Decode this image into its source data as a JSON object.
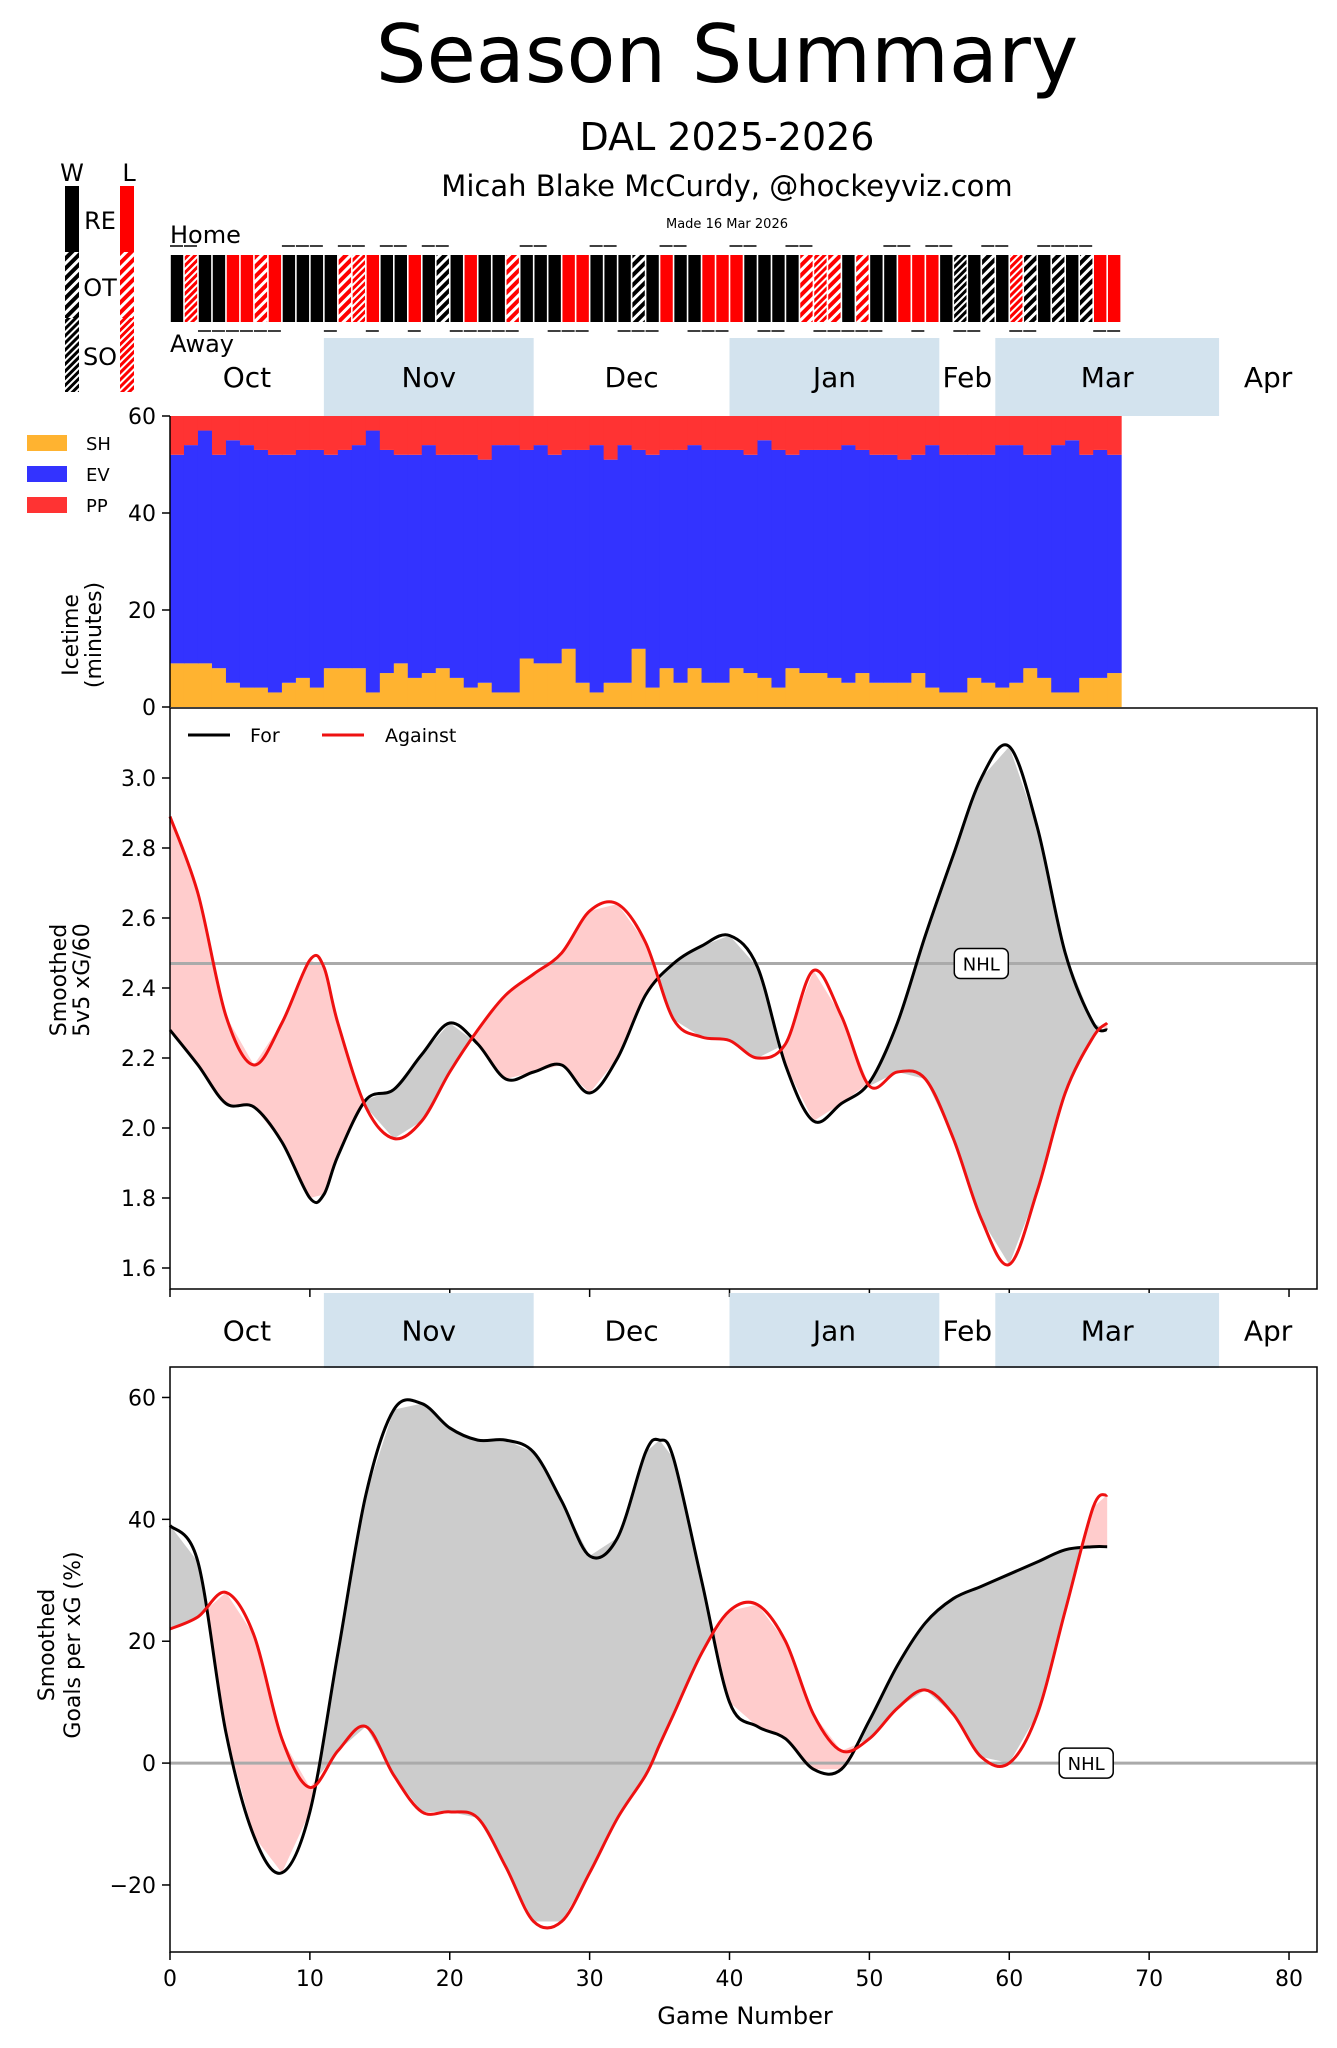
{
  "header": {
    "title": "Season Summary",
    "subtitle": "DAL 2025-2026",
    "author": "Micah Blake McCurdy, @hockeyviz.com",
    "made": "Made 16 Mar 2026"
  },
  "legend_bar": {
    "w": "W",
    "l": "L",
    "re": "RE",
    "ot": "OT",
    "so": "SO",
    "home": "Home",
    "away": "Away"
  },
  "colors": {
    "win": "#000000",
    "loss": "#ff0000",
    "sh": "#ffb330",
    "ev": "#3333ff",
    "pp": "#ff3333",
    "band": "#d3e3ee",
    "for_fill": "#cccccc",
    "against_fill": "#ffcccc",
    "nhl_line": "#aaaaaa"
  },
  "months": [
    "Oct",
    "Nov",
    "Dec",
    "Jan",
    "Feb",
    "Mar",
    "Apr"
  ],
  "games": {
    "result": [
      "W",
      "L",
      "W",
      "W",
      "L",
      "L",
      "L",
      "L",
      "W",
      "W",
      "W",
      "W",
      "L",
      "L",
      "L",
      "W",
      "W",
      "L",
      "W",
      "W",
      "W",
      "L",
      "W",
      "W",
      "L",
      "W",
      "W",
      "W",
      "L",
      "L",
      "W",
      "W",
      "W",
      "W",
      "W",
      "L",
      "W",
      "W",
      "L",
      "L",
      "L",
      "W",
      "W",
      "W",
      "W",
      "L",
      "L",
      "L",
      "W",
      "L",
      "W",
      "W",
      "L",
      "L",
      "L",
      "W",
      "W",
      "W",
      "W",
      "W",
      "L",
      "W",
      "W",
      "W",
      "W",
      "W",
      "L",
      "L"
    ],
    "type": [
      "RE",
      "SO",
      "RE",
      "RE",
      "RE",
      "RE",
      "OT",
      "RE",
      "RE",
      "RE",
      "RE",
      "RE",
      "OT",
      "SO",
      "RE",
      "RE",
      "RE",
      "RE",
      "RE",
      "OT",
      "RE",
      "RE",
      "RE",
      "RE",
      "OT",
      "RE",
      "RE",
      "RE",
      "RE",
      "RE",
      "RE",
      "RE",
      "RE",
      "OT",
      "RE",
      "RE",
      "RE",
      "RE",
      "RE",
      "RE",
      "RE",
      "RE",
      "RE",
      "RE",
      "RE",
      "OT",
      "SO",
      "OT",
      "RE",
      "OT",
      "RE",
      "RE",
      "RE",
      "RE",
      "RE",
      "RE",
      "SO",
      "RE",
      "OT",
      "RE",
      "SO",
      "OT",
      "RE",
      "OT",
      "RE",
      "OT",
      "RE",
      "RE"
    ],
    "home": [
      1,
      1,
      0,
      0,
      0,
      0,
      0,
      0,
      1,
      1,
      1,
      0,
      1,
      1,
      0,
      1,
      1,
      0,
      1,
      1,
      0,
      0,
      0,
      0,
      0,
      1,
      1,
      0,
      0,
      0,
      1,
      1,
      0,
      0,
      0,
      1,
      1,
      0,
      0,
      0,
      1,
      1,
      0,
      0,
      1,
      1,
      0,
      0,
      0,
      0,
      0,
      1,
      1,
      0,
      1,
      1,
      0,
      0,
      1,
      1,
      0,
      0,
      1,
      1,
      1,
      1,
      0,
      0
    ]
  },
  "chart_data": [
    {
      "type": "bar",
      "name": "icetime",
      "ylabel": "Icetime (minutes)",
      "ylabel_lines": [
        "Icetime",
        "(minutes)"
      ],
      "ylim": [
        0,
        60
      ],
      "yticks": [
        "0",
        "20",
        "40",
        "60"
      ],
      "legend": [
        "SH",
        "EV",
        "PP"
      ],
      "series": [
        {
          "name": "SH",
          "values": [
            9,
            9,
            9,
            8,
            5,
            4,
            4,
            3,
            5,
            6,
            4,
            8,
            8,
            8,
            3,
            7,
            9,
            6,
            7,
            8,
            6,
            4,
            5,
            3,
            3,
            10,
            9,
            9,
            12,
            5,
            3,
            5,
            5,
            12,
            4,
            8,
            5,
            8,
            5,
            5,
            8,
            7,
            6,
            4,
            8,
            7,
            7,
            6,
            5,
            7,
            5,
            5,
            5,
            7,
            4,
            3,
            3,
            6,
            5,
            4,
            5,
            8,
            6,
            3,
            3,
            6,
            6,
            7
          ]
        },
        {
          "name": "EV",
          "values": [
            43,
            45,
            48,
            44,
            50,
            50,
            49,
            49,
            47,
            47,
            49,
            44,
            45,
            46,
            54,
            46,
            43,
            46,
            47,
            44,
            46,
            48,
            46,
            51,
            51,
            43,
            45,
            43,
            41,
            48,
            51,
            46,
            49,
            41,
            48,
            45,
            48,
            46,
            48,
            48,
            45,
            45,
            49,
            49,
            44,
            46,
            46,
            47,
            49,
            46,
            47,
            47,
            46,
            45,
            50,
            49,
            49,
            46,
            47,
            50,
            49,
            44,
            46,
            51,
            52,
            46,
            47,
            45
          ]
        },
        {
          "name": "PP",
          "values": [
            8,
            6,
            3,
            8,
            5,
            6,
            7,
            8,
            8,
            7,
            7,
            8,
            7,
            6,
            3,
            7,
            8,
            8,
            6,
            8,
            8,
            8,
            9,
            6,
            6,
            7,
            6,
            8,
            7,
            7,
            6,
            9,
            6,
            7,
            8,
            7,
            7,
            6,
            7,
            7,
            7,
            8,
            5,
            7,
            8,
            7,
            7,
            7,
            6,
            7,
            8,
            8,
            9,
            8,
            6,
            8,
            8,
            8,
            8,
            6,
            6,
            8,
            8,
            6,
            5,
            8,
            7,
            8
          ]
        }
      ]
    },
    {
      "type": "area",
      "name": "xg60",
      "ylabel": "Smoothed 5v5 xG/60",
      "ylabel_lines": [
        "Smoothed",
        "5v5 xG/60"
      ],
      "ylim": [
        1.54,
        3.2
      ],
      "yticks": [
        "1.6",
        "1.8",
        "2.0",
        "2.2",
        "2.4",
        "2.6",
        "2.8",
        "3.0"
      ],
      "xlim": [
        0,
        82
      ],
      "nhl_average": 2.47,
      "nhl_label": "NHL",
      "legend": [
        "For",
        "Against"
      ],
      "series": [
        {
          "name": "For",
          "x": [
            0,
            2,
            4,
            6,
            8,
            10,
            11,
            12,
            14,
            16,
            18,
            20,
            22,
            24,
            26,
            28,
            30,
            32,
            34,
            36,
            38,
            40,
            42,
            44,
            46,
            48,
            50,
            52,
            54,
            56,
            58,
            60,
            62,
            64,
            66,
            67
          ],
          "values": [
            2.28,
            2.18,
            2.07,
            2.06,
            1.96,
            1.8,
            1.81,
            1.92,
            2.08,
            2.11,
            2.21,
            2.3,
            2.24,
            2.14,
            2.16,
            2.18,
            2.1,
            2.2,
            2.38,
            2.47,
            2.52,
            2.55,
            2.46,
            2.18,
            2.02,
            2.07,
            2.13,
            2.3,
            2.55,
            2.78,
            3.0,
            3.09,
            2.86,
            2.5,
            2.3,
            2.28
          ]
        },
        {
          "name": "Against",
          "x": [
            0,
            2,
            4,
            6,
            8,
            10,
            11,
            12,
            14,
            16,
            18,
            20,
            22,
            24,
            26,
            28,
            30,
            32,
            34,
            36,
            38,
            40,
            42,
            44,
            46,
            48,
            50,
            52,
            54,
            56,
            58,
            60,
            62,
            64,
            66,
            67
          ],
          "values": [
            2.89,
            2.67,
            2.32,
            2.18,
            2.3,
            2.48,
            2.46,
            2.3,
            2.06,
            1.97,
            2.02,
            2.16,
            2.28,
            2.38,
            2.44,
            2.5,
            2.62,
            2.64,
            2.53,
            2.31,
            2.26,
            2.25,
            2.2,
            2.24,
            2.45,
            2.32,
            2.12,
            2.16,
            2.14,
            1.97,
            1.74,
            1.61,
            1.82,
            2.1,
            2.26,
            2.3
          ]
        }
      ]
    },
    {
      "type": "area",
      "name": "goals_per_xg",
      "ylabel": "Smoothed Goals per xG (%)",
      "ylabel_lines": [
        "Smoothed",
        "Goals per xG (%)"
      ],
      "ylim": [
        -31,
        65
      ],
      "yticks": [
        "−20",
        "0",
        "20",
        "40",
        "60"
      ],
      "xlim": [
        0,
        82
      ],
      "xticks": [
        "0",
        "10",
        "20",
        "30",
        "40",
        "50",
        "60",
        "70",
        "80"
      ],
      "xlabel": "Game Number",
      "nhl_average": 0,
      "nhl_label": "NHL",
      "series": [
        {
          "name": "For",
          "x": [
            0,
            2,
            4,
            6,
            8,
            10,
            12,
            14,
            16,
            18,
            20,
            22,
            24,
            26,
            28,
            30,
            32,
            34,
            35,
            36,
            38,
            40,
            42,
            44,
            46,
            48,
            50,
            52,
            54,
            56,
            58,
            60,
            62,
            64,
            66,
            67
          ],
          "values": [
            39,
            33,
            5,
            -12,
            -18,
            -8,
            18,
            44,
            58,
            59,
            55,
            53,
            53,
            51,
            43,
            34,
            37,
            51,
            53,
            50,
            30,
            10,
            6,
            4,
            -1,
            -1,
            7,
            16,
            23,
            27,
            29,
            31,
            33,
            35,
            35.5,
            35.5
          ]
        },
        {
          "name": "Against",
          "x": [
            0,
            2,
            4,
            6,
            8,
            10,
            12,
            14,
            16,
            18,
            20,
            22,
            24,
            26,
            28,
            30,
            32,
            34,
            35,
            36,
            38,
            40,
            42,
            44,
            46,
            48,
            50,
            52,
            54,
            56,
            58,
            60,
            62,
            64,
            66,
            67
          ],
          "values": [
            22,
            24,
            28,
            21,
            4,
            -4,
            2,
            6,
            -2,
            -8,
            -8,
            -9,
            -17,
            -26,
            -26,
            -18,
            -9,
            -2,
            3,
            8,
            18,
            25,
            26,
            20,
            8,
            2,
            4,
            9,
            12,
            8,
            1,
            0,
            8,
            25,
            42,
            44
          ]
        }
      ]
    }
  ]
}
